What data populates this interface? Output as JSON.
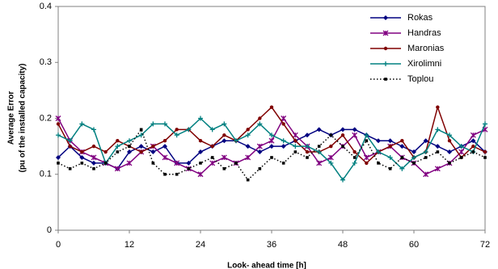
{
  "chart_data": {
    "type": "line",
    "x_label": "Look- ahead time [h]",
    "y_label": [
      "Average Error",
      "(pu of the installed capacity)"
    ],
    "x": [
      0,
      2,
      4,
      6,
      8,
      10,
      12,
      14,
      16,
      18,
      20,
      22,
      24,
      26,
      28,
      30,
      32,
      34,
      36,
      38,
      40,
      42,
      44,
      46,
      48,
      50,
      52,
      54,
      56,
      58,
      60,
      62,
      64,
      66,
      68,
      70,
      72
    ],
    "xlim": [
      0,
      72
    ],
    "xticks": [
      0,
      12,
      24,
      36,
      48,
      60,
      72
    ],
    "ylim": [
      0,
      0.4
    ],
    "yticks": [
      0,
      0.1,
      0.2,
      0.3,
      0.4
    ],
    "grid": false,
    "legend": "upper right",
    "series": [
      {
        "name": "Rokas",
        "color": "#000080",
        "marker": "diamond",
        "line_style": "solid",
        "values": [
          0.13,
          0.15,
          0.13,
          0.12,
          0.12,
          0.11,
          0.14,
          0.15,
          0.14,
          0.15,
          0.12,
          0.12,
          0.14,
          0.15,
          0.16,
          0.16,
          0.15,
          0.14,
          0.15,
          0.15,
          0.16,
          0.17,
          0.18,
          0.17,
          0.18,
          0.18,
          0.17,
          0.16,
          0.16,
          0.15,
          0.14,
          0.16,
          0.15,
          0.14,
          0.15,
          0.16,
          0.14
        ]
      },
      {
        "name": "Handras",
        "color": "#800080",
        "marker": "star",
        "line_style": "solid",
        "values": [
          0.2,
          0.16,
          0.14,
          0.13,
          0.12,
          0.11,
          0.12,
          0.14,
          0.15,
          0.13,
          0.12,
          0.11,
          0.1,
          0.12,
          0.13,
          0.12,
          0.13,
          0.15,
          0.16,
          0.2,
          0.17,
          0.15,
          0.12,
          0.13,
          0.15,
          0.17,
          0.13,
          0.14,
          0.15,
          0.13,
          0.12,
          0.1,
          0.11,
          0.12,
          0.14,
          0.17,
          0.18
        ]
      },
      {
        "name": "Maronias",
        "color": "#800000",
        "marker": "circle",
        "line_style": "solid",
        "values": [
          0.19,
          0.15,
          0.14,
          0.15,
          0.14,
          0.16,
          0.15,
          0.14,
          0.15,
          0.16,
          0.18,
          0.18,
          0.16,
          0.15,
          0.17,
          0.16,
          0.18,
          0.2,
          0.22,
          0.19,
          0.16,
          0.14,
          0.14,
          0.15,
          0.17,
          0.14,
          0.12,
          0.14,
          0.15,
          0.16,
          0.13,
          0.14,
          0.22,
          0.16,
          0.13,
          0.15,
          0.14
        ]
      },
      {
        "name": "Xirolimni",
        "color": "#008080",
        "marker": "plus",
        "line_style": "solid",
        "values": [
          0.17,
          0.16,
          0.19,
          0.18,
          0.12,
          0.15,
          0.16,
          0.17,
          0.19,
          0.19,
          0.17,
          0.18,
          0.2,
          0.18,
          0.19,
          0.16,
          0.17,
          0.19,
          0.17,
          0.16,
          0.15,
          0.15,
          0.14,
          0.12,
          0.09,
          0.12,
          0.17,
          0.14,
          0.13,
          0.11,
          0.13,
          0.14,
          0.18,
          0.17,
          0.15,
          0.14,
          0.19
        ]
      },
      {
        "name": "Toplou",
        "color": "#000000",
        "marker": "square",
        "line_style": "dotted",
        "values": [
          0.12,
          0.11,
          0.12,
          0.11,
          0.12,
          0.14,
          0.15,
          0.18,
          0.12,
          0.1,
          0.1,
          0.11,
          0.12,
          0.13,
          0.11,
          0.12,
          0.09,
          0.11,
          0.13,
          0.12,
          0.14,
          0.13,
          0.15,
          0.17,
          0.15,
          0.13,
          0.16,
          0.12,
          0.11,
          0.13,
          0.12,
          0.13,
          0.14,
          0.12,
          0.13,
          0.14,
          0.13
        ]
      }
    ]
  }
}
